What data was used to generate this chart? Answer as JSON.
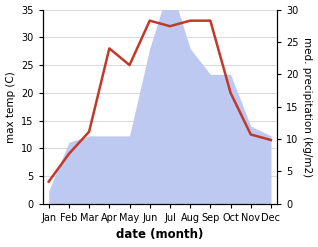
{
  "months": [
    "Jan",
    "Feb",
    "Mar",
    "Apr",
    "May",
    "Jun",
    "Jul",
    "Aug",
    "Sep",
    "Oct",
    "Nov",
    "Dec"
  ],
  "temperature": [
    4.0,
    9.0,
    13.0,
    28.0,
    25.0,
    33.0,
    32.0,
    33.0,
    33.0,
    20.0,
    12.5,
    11.5
  ],
  "precipitation": [
    2.0,
    9.5,
    10.5,
    10.5,
    10.5,
    24.0,
    34.0,
    24.0,
    20.0,
    20.0,
    12.0,
    10.5
  ],
  "temp_color": "#c0392b",
  "precip_fill_color": "#bdc9f0",
  "temp_ylim": [
    0,
    35
  ],
  "precip_ylim": [
    0,
    30
  ],
  "temp_yticks": [
    0,
    5,
    10,
    15,
    20,
    25,
    30,
    35
  ],
  "precip_yticks": [
    0,
    5,
    10,
    15,
    20,
    25,
    30
  ],
  "xlabel": "date (month)",
  "ylabel_left": "max temp (C)",
  "ylabel_right": "med. precipitation (kg/m2)",
  "background_color": "#ffffff",
  "label_fontsize": 7.5,
  "tick_fontsize": 7.0,
  "xlabel_fontsize": 8.5,
  "linewidth": 1.8
}
